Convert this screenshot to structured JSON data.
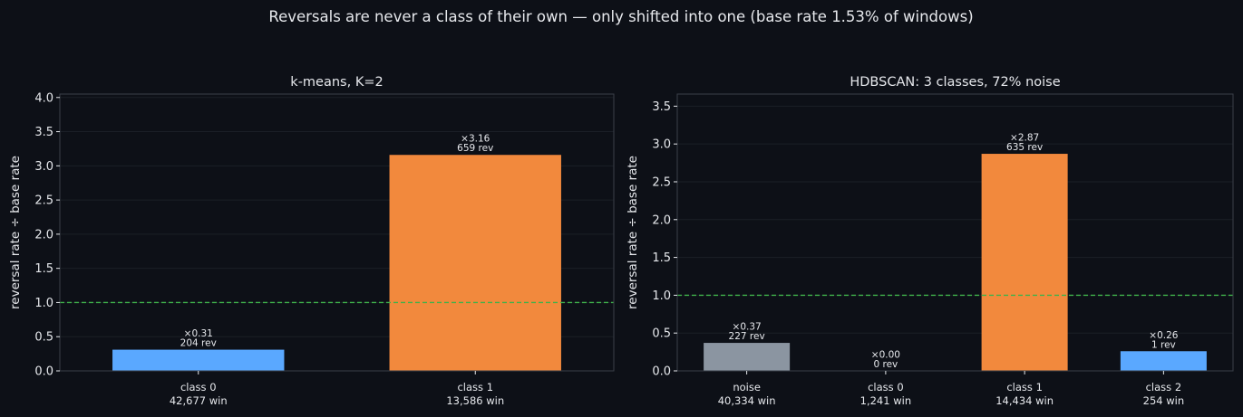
{
  "figure": {
    "suptitle": "Reversals are never a class of their own — only shifted into one (base rate 1.53% of windows)"
  },
  "chart_data": [
    {
      "type": "bar",
      "title": "k-means, K=2",
      "xlabel": "",
      "ylabel": "reversal rate ÷ base rate",
      "ylim": [
        0,
        4.05
      ],
      "yticks": [
        "0.0",
        "0.5",
        "1.0",
        "1.5",
        "2.0",
        "2.5",
        "3.0",
        "3.5",
        "4.0"
      ],
      "ytick_values": [
        0,
        0.5,
        1.0,
        1.5,
        2.0,
        2.5,
        3.0,
        3.5,
        4.0
      ],
      "reference_line": 1.0,
      "grid": true,
      "categories": [
        "class 0",
        "class 1"
      ],
      "windows": [
        "42,677 win",
        "13,586 win"
      ],
      "values": [
        0.31,
        3.16
      ],
      "bar_labels": [
        "×0.31",
        "×3.16"
      ],
      "rev_labels": [
        "204 rev",
        "659 rev"
      ],
      "colors": [
        "#5aa8ff",
        "#f2893d"
      ]
    },
    {
      "type": "bar",
      "title": "HDBSCAN: 3 classes, 72% noise",
      "xlabel": "",
      "ylabel": "reversal rate ÷ base rate",
      "ylim": [
        0,
        3.66
      ],
      "yticks": [
        "0.0",
        "0.5",
        "1.0",
        "1.5",
        "2.0",
        "2.5",
        "3.0",
        "3.5"
      ],
      "ytick_values": [
        0,
        0.5,
        1.0,
        1.5,
        2.0,
        2.5,
        3.0,
        3.5
      ],
      "reference_line": 1.0,
      "grid": true,
      "categories": [
        "noise",
        "class 0",
        "class 1",
        "class 2"
      ],
      "windows": [
        "40,334 win",
        "1,241 win",
        "14,434 win",
        "254 win"
      ],
      "values": [
        0.37,
        0.0,
        2.87,
        0.26
      ],
      "bar_labels": [
        "×0.37",
        "×0.00",
        "×2.87",
        "×0.26"
      ],
      "rev_labels": [
        "227 rev",
        "0 rev",
        "635 rev",
        "1 rev"
      ],
      "colors": [
        "#8b95a1",
        "#5aa8ff",
        "#f2893d",
        "#5aa8ff"
      ]
    }
  ],
  "colors": {
    "background": "#0d1017",
    "axes_border": "#3a3f48",
    "grid": "#1b1f27",
    "text": "#e6e8ec",
    "reference_line": "#3fb24a"
  }
}
